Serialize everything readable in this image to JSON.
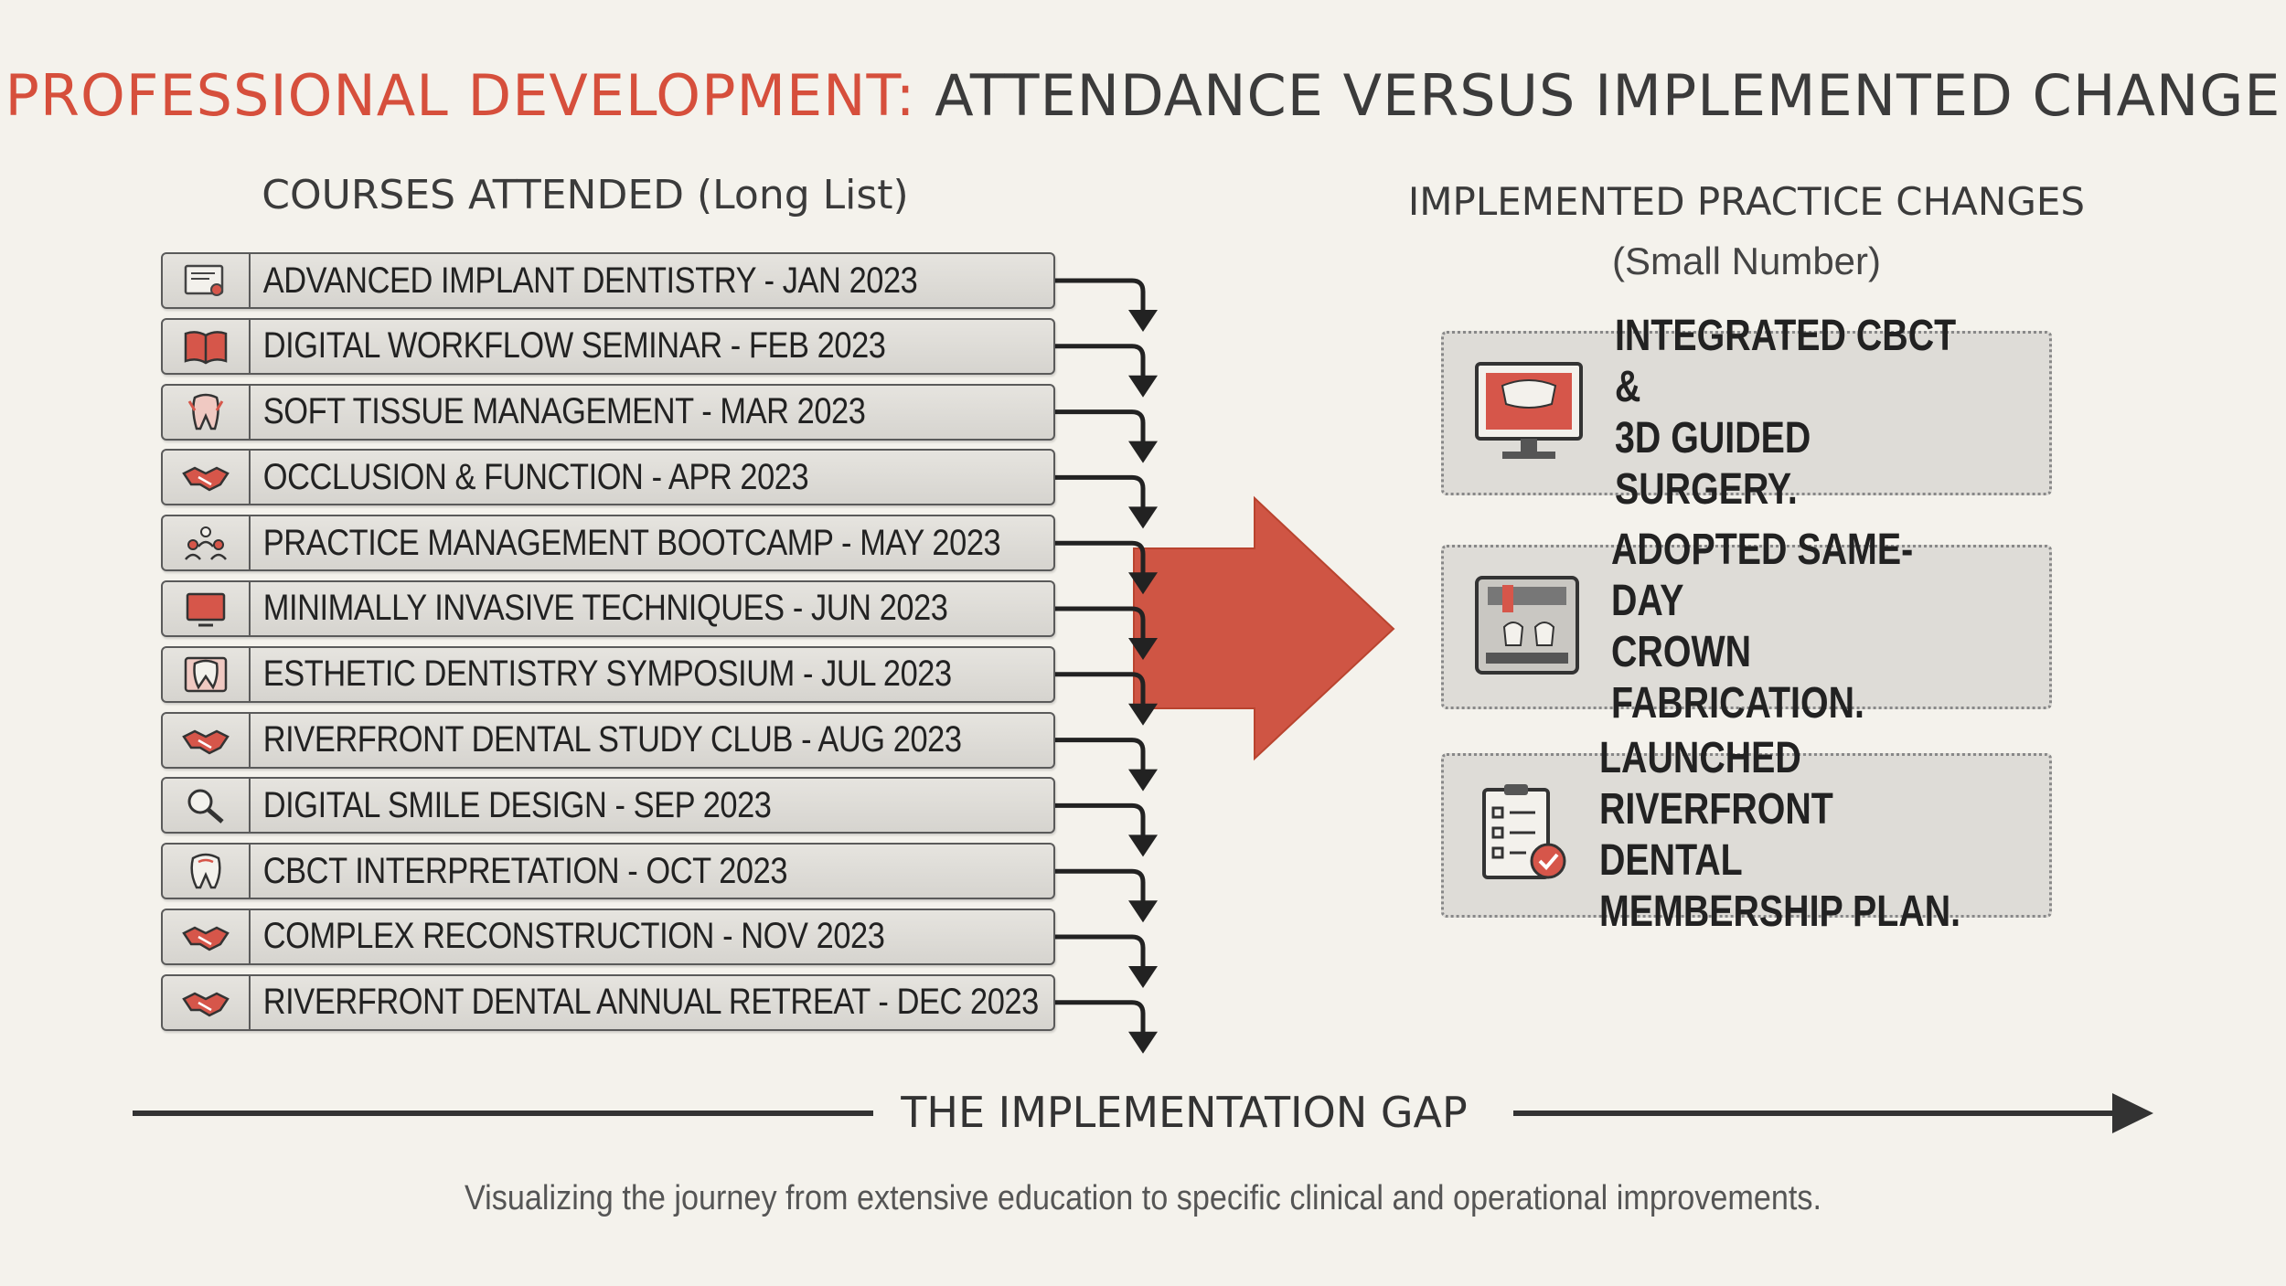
{
  "title": {
    "accent": "PROFESSIONAL DEVELOPMENT:",
    "rest": "ATTENDANCE VERSUS IMPLEMENTED CHANGE"
  },
  "left_heading": "COURSES ATTENDED (Long List)",
  "right_heading": "IMPLEMENTED PRACTICE CHANGES",
  "right_subheading": "(Small Number)",
  "courses": [
    {
      "label": "ADVANCED IMPLANT DENTISTRY - JAN 2023",
      "icon": "certificate-icon"
    },
    {
      "label": "DIGITAL WORKFLOW SEMINAR - FEB 2023",
      "icon": "book-icon"
    },
    {
      "label": "SOFT TISSUE MANAGEMENT - MAR 2023",
      "icon": "tooth-implant-icon"
    },
    {
      "label": "OCCLUSION & FUNCTION - APR 2023",
      "icon": "handshake-icon"
    },
    {
      "label": "PRACTICE MANAGEMENT BOOTCAMP - MAY 2023",
      "icon": "team-icon"
    },
    {
      "label": "MINIMALLY INVASIVE TECHNIQUES - JUN 2023",
      "icon": "monitor-icon"
    },
    {
      "label": "ESTHETIC DENTISTRY SYMPOSIUM - JUL 2023",
      "icon": "smile-tooth-icon"
    },
    {
      "label": "RIVERFRONT DENTAL STUDY CLUB - AUG 2023",
      "icon": "handshake-icon"
    },
    {
      "label": "DIGITAL SMILE DESIGN - SEP 2023",
      "icon": "magnifier-icon"
    },
    {
      "label": "CBCT INTERPRETATION - OCT 2023",
      "icon": "tooth-icon"
    },
    {
      "label": "COMPLEX RECONSTRUCTION - NOV 2023",
      "icon": "handshake-icon"
    },
    {
      "label": "RIVERFRONT DENTAL ANNUAL RETREAT - DEC 2023",
      "icon": "handshake-icon"
    }
  ],
  "changes": [
    {
      "text": "INTEGRATED CBCT &\n3D GUIDED SURGERY.",
      "icon": "cbct-monitor-icon"
    },
    {
      "text": "ADOPTED SAME-DAY\nCROWN FABRICATION.",
      "icon": "milling-machine-icon"
    },
    {
      "text": "LAUNCHED RIVERFRONT\nDENTAL MEMBERSHIP PLAN.",
      "icon": "checklist-icon"
    }
  ],
  "gap_label": "THE IMPLEMENTATION GAP",
  "caption": "Visualizing the journey from extensive education to specific clinical and operational improvements.",
  "colors": {
    "accent": "#d64f3c",
    "arrow_red": "#cf5544",
    "dark": "#333333"
  }
}
